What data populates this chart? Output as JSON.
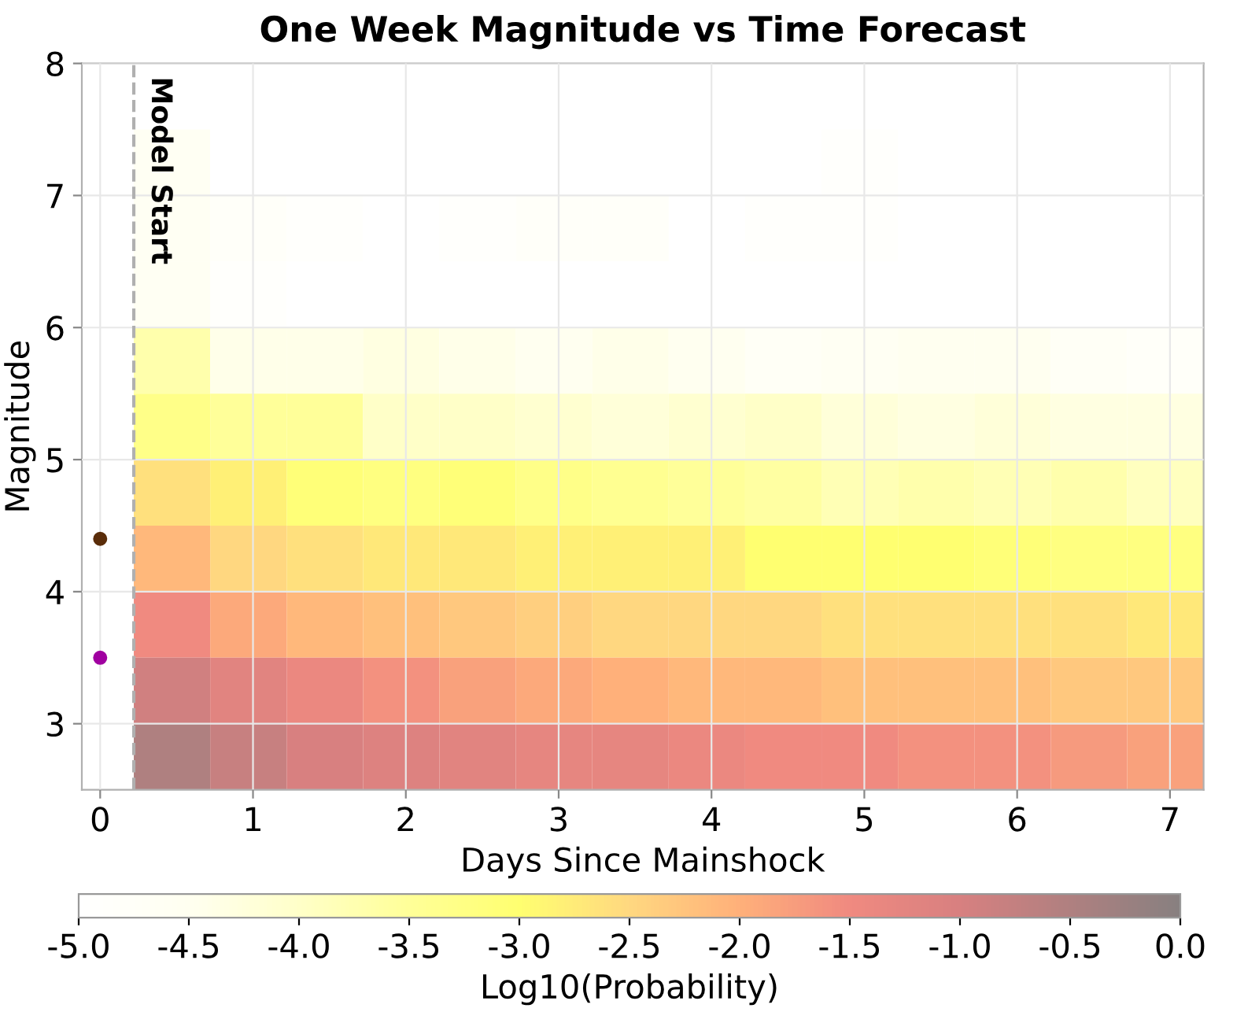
{
  "chart_data": {
    "type": "heatmap",
    "title": "One Week Magnitude vs Time Forecast",
    "xlabel": "Days Since Mainshock",
    "ylabel": "Magnitude",
    "clabel": "Log10(Probability)",
    "x": [
      0.47,
      0.97,
      1.47,
      1.97,
      2.47,
      2.97,
      3.47,
      3.97,
      4.47,
      4.97,
      5.47,
      5.97,
      6.47,
      6.97
    ],
    "cells": [
      [
        -5.0,
        -5.0,
        -5.0,
        -5.0,
        -5.0,
        -5.0,
        -5.0,
        -5.0,
        -5.0,
        -5.0,
        -5.0,
        -5.0,
        -5.0,
        -5.0
      ],
      [
        -4.6,
        -5.0,
        -5.0,
        -5.0,
        -5.0,
        -5.0,
        -5.0,
        -5.0,
        -5.0,
        -4.9,
        -5.0,
        -5.0,
        -5.0,
        -5.0
      ],
      [
        -4.6,
        -4.8,
        -4.9,
        -5.0,
        -4.9,
        -4.8,
        -4.8,
        -5.0,
        -4.9,
        -4.9,
        -5.0,
        -5.0,
        -5.0,
        -5.0
      ],
      [
        -4.6,
        -4.9,
        -5.0,
        -5.0,
        -5.0,
        -5.0,
        -5.0,
        -5.0,
        -5.0,
        -5.0,
        -5.0,
        -5.0,
        -5.0,
        -5.0
      ],
      [
        -3.7,
        -4.4,
        -4.4,
        -4.3,
        -4.4,
        -4.5,
        -4.4,
        -4.5,
        -4.7,
        -4.6,
        -4.5,
        -4.5,
        -4.7,
        -4.8
      ],
      [
        -3.3,
        -3.5,
        -3.5,
        -4.0,
        -4.0,
        -4.1,
        -4.2,
        -4.1,
        -4.0,
        -4.2,
        -4.3,
        -4.2,
        -4.3,
        -4.3
      ],
      [
        -2.6,
        -2.8,
        -3.1,
        -3.2,
        -3.1,
        -3.3,
        -3.4,
        -3.5,
        -3.6,
        -3.8,
        -3.7,
        -3.8,
        -3.7,
        -3.9
      ],
      [
        -2.1,
        -2.5,
        -2.6,
        -2.7,
        -2.7,
        -2.8,
        -2.8,
        -2.8,
        -3.0,
        -3.0,
        -3.0,
        -3.1,
        -3.2,
        -3.2
      ],
      [
        -1.5,
        -1.9,
        -2.1,
        -2.2,
        -2.3,
        -2.4,
        -2.5,
        -2.5,
        -2.5,
        -2.6,
        -2.6,
        -2.6,
        -2.6,
        -2.7
      ],
      [
        -0.9,
        -1.2,
        -1.4,
        -1.6,
        -1.8,
        -1.9,
        -2.0,
        -2.1,
        -2.1,
        -2.2,
        -2.2,
        -2.2,
        -2.3,
        -2.3
      ],
      [
        -0.5,
        -0.8,
        -1.0,
        -1.1,
        -1.2,
        -1.3,
        -1.3,
        -1.4,
        -1.5,
        -1.5,
        -1.6,
        -1.6,
        -1.7,
        -1.8
      ]
    ],
    "series": [
      {
        "type": "scatter",
        "x": [
          0
        ],
        "values": [
          4.4
        ],
        "color": "#5a2d0a"
      },
      {
        "type": "scatter",
        "x": [
          0
        ],
        "values": [
          3.5
        ],
        "color": "#a000a0"
      }
    ],
    "marker": "circle",
    "xlim": [
      -0.12,
      7.22
    ],
    "xticks": [
      0,
      1,
      2,
      3,
      4,
      5,
      6,
      7
    ],
    "ylim": [
      2.5,
      8
    ],
    "yticks": [
      3,
      4,
      5,
      6,
      7,
      8
    ],
    "clim": [
      -5,
      0
    ],
    "cticks": [
      {
        "value": -5,
        "label": "-5.0"
      },
      {
        "value": -4.5,
        "label": "-4.5"
      },
      {
        "value": -4,
        "label": "-4.0"
      },
      {
        "value": -3.5,
        "label": "-3.5"
      },
      {
        "value": -3,
        "label": "-3.0"
      },
      {
        "value": -2.5,
        "label": "-2.5"
      },
      {
        "value": -2,
        "label": "-2.0"
      },
      {
        "value": -1.5,
        "label": "-1.5"
      },
      {
        "value": -1,
        "label": "-1.0"
      },
      {
        "value": -0.5,
        "label": "-0.5"
      },
      {
        "value": 0,
        "label": "0.0"
      }
    ],
    "ref_lines": [
      {
        "axis": "x",
        "value": 0.22,
        "label": "Model Start",
        "color": "#b0b0b0",
        "line_style": "dashed"
      }
    ],
    "grid": true
  }
}
